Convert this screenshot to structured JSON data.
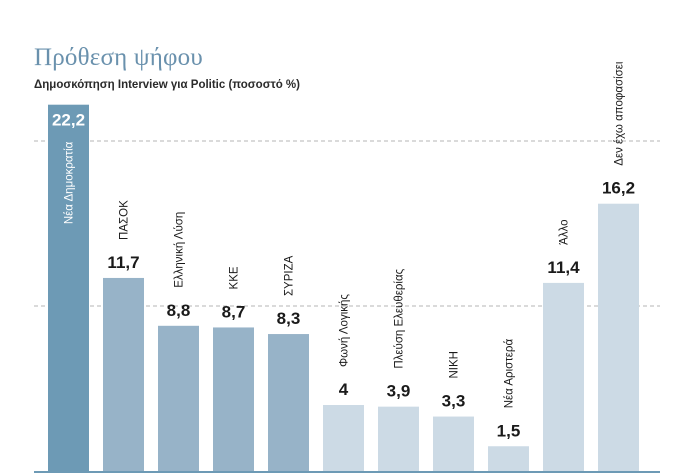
{
  "header": {
    "title": "Πρόθεση ψήφου",
    "subtitle": "Δημοσκόπηση Interview για Politic (ποσοστό %)"
  },
  "colors": {
    "highlight": "#6d9ab5",
    "mid": "#97b3c8",
    "light": "#ccdae5",
    "grid": "#b5b5b5",
    "baseline": "#6d9ab5",
    "title": "#6a91ad",
    "label": "#1a1a1a"
  },
  "chart_data": {
    "type": "bar",
    "categories": [
      "Νέα Δημοκρατία",
      "ΠΑΣΟΚ",
      "Ελληνική Λύση",
      "ΚΚΕ",
      "ΣΥΡΙΖΑ",
      "Φωνή Λογικής",
      "Πλεύση Ελευθερίας",
      "ΝΙΚΗ",
      "Νέα Αριστερά",
      "Άλλο",
      "Δεν έχω αποφασίσει"
    ],
    "values": [
      22.2,
      11.7,
      8.8,
      8.7,
      8.3,
      4,
      3.9,
      3.3,
      1.5,
      11.4,
      16.2
    ],
    "value_labels": [
      "22,2",
      "11,7",
      "8,8",
      "8,7",
      "8,3",
      "4",
      "3,9",
      "3,3",
      "1,5",
      "11,4",
      "16,2"
    ],
    "bar_tones": [
      "highlight",
      "mid",
      "mid",
      "mid",
      "mid",
      "light",
      "light",
      "light",
      "light",
      "light",
      "light"
    ],
    "gridlines": [
      10,
      20
    ],
    "ylim": [
      0,
      22.2
    ],
    "grid": true,
    "legend": "none",
    "xlabel": "",
    "ylabel": ""
  }
}
